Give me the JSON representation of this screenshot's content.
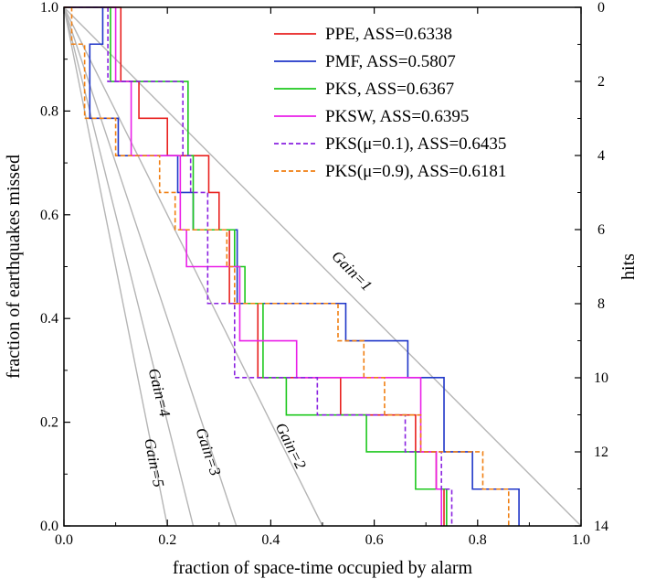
{
  "chart_data": {
    "type": "line",
    "xlabel": "fraction of space-time occupied by alarm",
    "ylabel": "fraction of earthquakes missed",
    "y2label": "hits",
    "xlim": [
      0,
      1
    ],
    "ylim": [
      0,
      1
    ],
    "y2lim": [
      14,
      0
    ],
    "x_ticks": [
      "0.0",
      "0.2",
      "0.4",
      "0.6",
      "0.8",
      "1.0"
    ],
    "y_ticks": [
      "0.0",
      "0.2",
      "0.4",
      "0.6",
      "0.8",
      "1.0"
    ],
    "y2_ticks": [
      "0",
      "2",
      "4",
      "6",
      "8",
      "10",
      "12",
      "14"
    ],
    "legend_position": "top-right",
    "gain_lines": [
      {
        "gain": 1,
        "label": "Gain=1"
      },
      {
        "gain": 2,
        "label": "Gain=2"
      },
      {
        "gain": 3,
        "label": "Gain=3"
      },
      {
        "gain": 4,
        "label": "Gain=4"
      },
      {
        "gain": 5,
        "label": "Gain=5"
      }
    ],
    "series": [
      {
        "name": "PPE, ASS=0.6338",
        "color": "#e8211f",
        "dash": "solid",
        "points": [
          [
            0,
            1.0
          ],
          [
            0.11,
            1.0
          ],
          [
            0.11,
            0.857
          ],
          [
            0.145,
            0.857
          ],
          [
            0.145,
            0.786
          ],
          [
            0.2,
            0.786
          ],
          [
            0.2,
            0.714
          ],
          [
            0.28,
            0.714
          ],
          [
            0.28,
            0.643
          ],
          [
            0.3,
            0.643
          ],
          [
            0.3,
            0.571
          ],
          [
            0.32,
            0.571
          ],
          [
            0.32,
            0.429
          ],
          [
            0.375,
            0.429
          ],
          [
            0.375,
            0.286
          ],
          [
            0.535,
            0.286
          ],
          [
            0.535,
            0.214
          ],
          [
            0.68,
            0.214
          ],
          [
            0.68,
            0.143
          ],
          [
            0.72,
            0.143
          ],
          [
            0.72,
            0.071
          ],
          [
            0.735,
            0.071
          ],
          [
            0.735,
            0.0
          ]
        ]
      },
      {
        "name": "PMF, ASS=0.5807",
        "color": "#1f36c8",
        "dash": "solid",
        "points": [
          [
            0,
            1.0
          ],
          [
            0.075,
            1.0
          ],
          [
            0.075,
            0.929
          ],
          [
            0.05,
            0.929
          ],
          [
            0.05,
            0.786
          ],
          [
            0.105,
            0.786
          ],
          [
            0.105,
            0.714
          ],
          [
            0.22,
            0.714
          ],
          [
            0.22,
            0.643
          ],
          [
            0.25,
            0.643
          ],
          [
            0.25,
            0.571
          ],
          [
            0.335,
            0.571
          ],
          [
            0.335,
            0.429
          ],
          [
            0.545,
            0.429
          ],
          [
            0.545,
            0.357
          ],
          [
            0.665,
            0.357
          ],
          [
            0.665,
            0.286
          ],
          [
            0.735,
            0.286
          ],
          [
            0.735,
            0.143
          ],
          [
            0.79,
            0.143
          ],
          [
            0.79,
            0.071
          ],
          [
            0.88,
            0.071
          ],
          [
            0.88,
            0.0
          ]
        ]
      },
      {
        "name": "PKS, ASS=0.6367",
        "color": "#1ec81e",
        "dash": "solid",
        "points": [
          [
            0,
            1.0
          ],
          [
            0.09,
            1.0
          ],
          [
            0.09,
            0.857
          ],
          [
            0.24,
            0.857
          ],
          [
            0.24,
            0.714
          ],
          [
            0.25,
            0.714
          ],
          [
            0.25,
            0.643
          ],
          [
            0.25,
            0.571
          ],
          [
            0.33,
            0.571
          ],
          [
            0.33,
            0.5
          ],
          [
            0.35,
            0.5
          ],
          [
            0.35,
            0.429
          ],
          [
            0.385,
            0.429
          ],
          [
            0.385,
            0.286
          ],
          [
            0.43,
            0.286
          ],
          [
            0.43,
            0.214
          ],
          [
            0.585,
            0.214
          ],
          [
            0.585,
            0.143
          ],
          [
            0.68,
            0.143
          ],
          [
            0.68,
            0.071
          ],
          [
            0.74,
            0.071
          ],
          [
            0.74,
            0.0
          ]
        ]
      },
      {
        "name": "PKSW, ASS=0.6395",
        "color": "#ea1fe8",
        "dash": "solid",
        "points": [
          [
            0,
            1.0
          ],
          [
            0.1,
            1.0
          ],
          [
            0.1,
            0.857
          ],
          [
            0.13,
            0.857
          ],
          [
            0.13,
            0.714
          ],
          [
            0.225,
            0.714
          ],
          [
            0.225,
            0.571
          ],
          [
            0.237,
            0.571
          ],
          [
            0.237,
            0.5
          ],
          [
            0.34,
            0.5
          ],
          [
            0.34,
            0.357
          ],
          [
            0.45,
            0.357
          ],
          [
            0.45,
            0.286
          ],
          [
            0.69,
            0.286
          ],
          [
            0.69,
            0.143
          ],
          [
            0.72,
            0.143
          ],
          [
            0.72,
            0.071
          ],
          [
            0.73,
            0.071
          ],
          [
            0.73,
            0.0
          ]
        ]
      },
      {
        "name": "PKS(μ=0.1), ASS=0.6435",
        "color": "#8a22e0",
        "dash": "dashed",
        "points": [
          [
            0,
            1.0
          ],
          [
            0.085,
            1.0
          ],
          [
            0.085,
            0.857
          ],
          [
            0.23,
            0.857
          ],
          [
            0.23,
            0.714
          ],
          [
            0.245,
            0.714
          ],
          [
            0.245,
            0.643
          ],
          [
            0.278,
            0.643
          ],
          [
            0.278,
            0.429
          ],
          [
            0.33,
            0.429
          ],
          [
            0.33,
            0.286
          ],
          [
            0.49,
            0.286
          ],
          [
            0.49,
            0.214
          ],
          [
            0.66,
            0.214
          ],
          [
            0.66,
            0.143
          ],
          [
            0.73,
            0.143
          ],
          [
            0.73,
            0.071
          ],
          [
            0.75,
            0.071
          ],
          [
            0.75,
            0.0
          ]
        ]
      },
      {
        "name": "PKS(μ=0.9), ASS=0.6181",
        "color": "#f07f12",
        "dash": "dashed",
        "points": [
          [
            0,
            1.0
          ],
          [
            0.015,
            1.0
          ],
          [
            0.015,
            0.929
          ],
          [
            0.04,
            0.929
          ],
          [
            0.04,
            0.786
          ],
          [
            0.1,
            0.786
          ],
          [
            0.1,
            0.714
          ],
          [
            0.185,
            0.714
          ],
          [
            0.185,
            0.643
          ],
          [
            0.215,
            0.643
          ],
          [
            0.215,
            0.571
          ],
          [
            0.315,
            0.571
          ],
          [
            0.315,
            0.5
          ],
          [
            0.33,
            0.5
          ],
          [
            0.33,
            0.429
          ],
          [
            0.53,
            0.429
          ],
          [
            0.53,
            0.357
          ],
          [
            0.58,
            0.357
          ],
          [
            0.58,
            0.286
          ],
          [
            0.62,
            0.286
          ],
          [
            0.62,
            0.214
          ],
          [
            0.69,
            0.214
          ],
          [
            0.69,
            0.143
          ],
          [
            0.81,
            0.143
          ],
          [
            0.81,
            0.071
          ],
          [
            0.86,
            0.071
          ],
          [
            0.86,
            0.0
          ]
        ]
      }
    ]
  }
}
